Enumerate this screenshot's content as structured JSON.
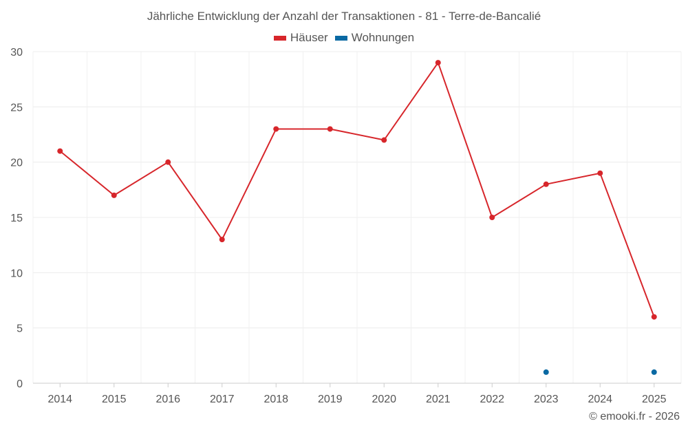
{
  "chart_data": {
    "type": "line",
    "title": "Jährliche Entwicklung der Anzahl der Transaktionen - 81 - Terre-de-Bancalié",
    "categories": [
      "2014",
      "2015",
      "2016",
      "2017",
      "2018",
      "2019",
      "2020",
      "2021",
      "2022",
      "2023",
      "2024",
      "2025"
    ],
    "series": [
      {
        "name": "Häuser",
        "color": "#d7262b",
        "values": [
          21,
          17,
          20,
          13,
          23,
          23,
          22,
          29,
          15,
          18,
          19,
          6
        ]
      },
      {
        "name": "Wohnungen",
        "color": "#0a69a3",
        "values": [
          null,
          null,
          null,
          null,
          null,
          null,
          null,
          null,
          null,
          1,
          null,
          1
        ]
      }
    ],
    "ylim": [
      0,
      30
    ],
    "yticks": [
      "0",
      "5",
      "10",
      "15",
      "20",
      "25",
      "30"
    ],
    "xlabel": "",
    "ylabel": "",
    "grid": true,
    "legend_position": "top-center"
  },
  "credit": "© emooki.fr - 2026"
}
